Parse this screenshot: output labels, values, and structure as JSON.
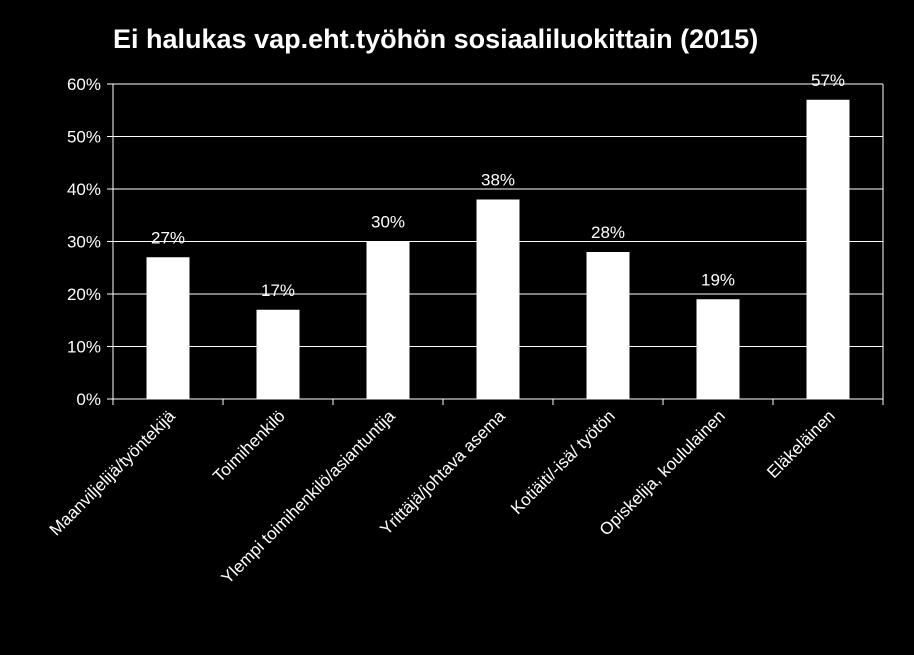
{
  "chart_data": {
    "type": "bar",
    "title": "Ei halukas vap.eht.työhön sosiaaliluokittain (2015)",
    "categories": [
      "Maanviljelijä/työntekijä",
      "Toimihenkilö",
      "Ylempi toimihenkilö/asiantuntija",
      "Yrittäjä/johtava asema",
      "Kotiäiti/-isä/ työtön",
      "Opiskelija, koululainen",
      "Eläkeläinen"
    ],
    "values": [
      27,
      17,
      30,
      38,
      28,
      19,
      57
    ],
    "data_labels": [
      "27%",
      "17%",
      "30%",
      "38%",
      "28%",
      "19%",
      "57%"
    ],
    "y_ticks": [
      0,
      10,
      20,
      30,
      40,
      50,
      60
    ],
    "y_tick_labels": [
      "0%",
      "10%",
      "20%",
      "30%",
      "40%",
      "50%",
      "60%"
    ],
    "ylim": [
      0,
      60
    ],
    "grid": true,
    "legend": "none",
    "colors": {
      "background": "#000000",
      "bar": "#ffffff",
      "text": "#ffffff",
      "grid": "#ffffff"
    }
  }
}
